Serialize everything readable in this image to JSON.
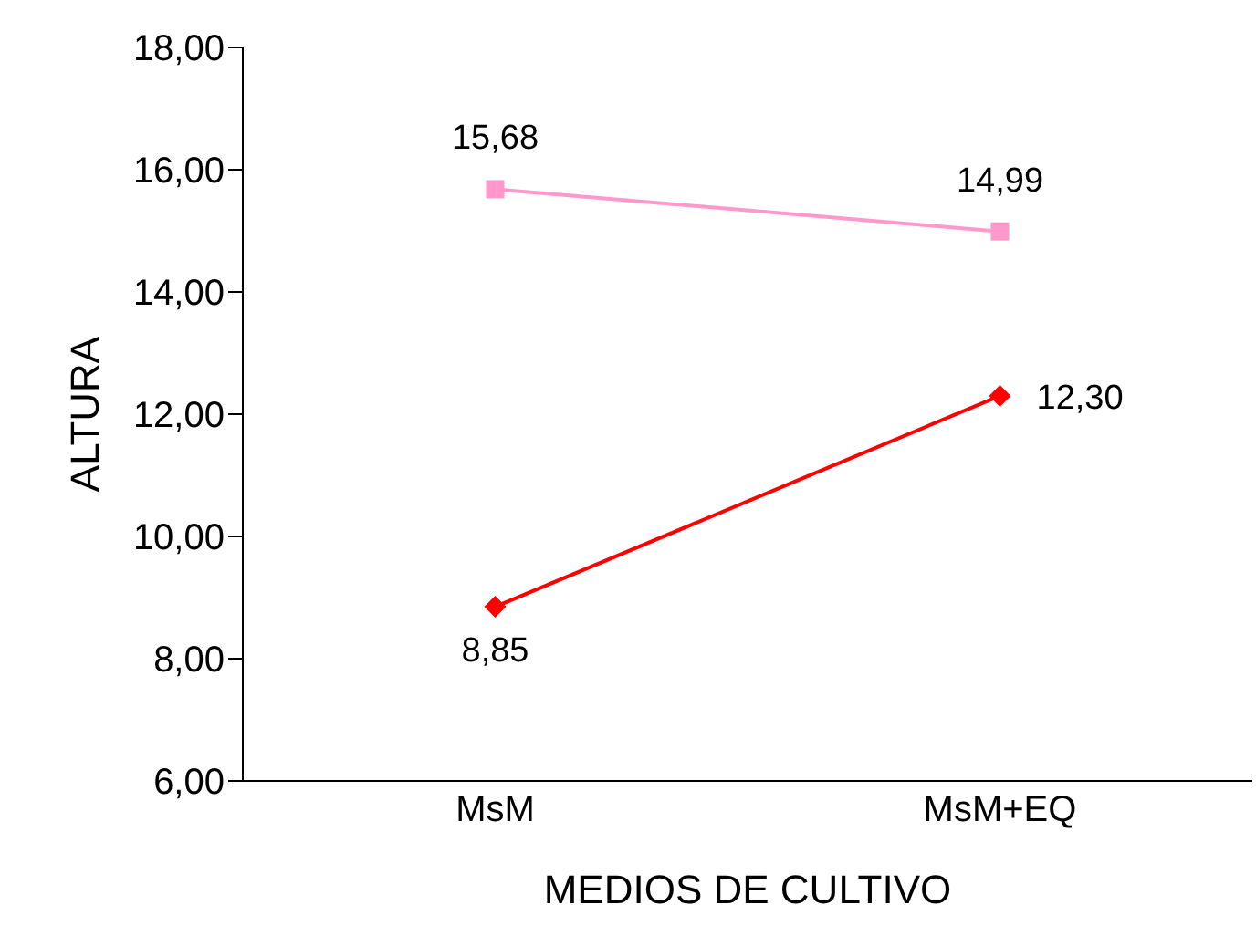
{
  "chart_data": {
    "type": "line",
    "xlabel": "MEDIOS DE CULTIVO",
    "ylabel": "ALTURA",
    "categories": [
      "MsM",
      "MsM+EQ"
    ],
    "series": [
      {
        "color": "#ff99cc",
        "values": [
          15.68,
          14.99
        ],
        "value_labels": [
          "15,68",
          "14,99"
        ],
        "marker": "square"
      },
      {
        "color": "#ff0000",
        "values": [
          8.85,
          12.3
        ],
        "value_labels": [
          "8,85",
          "12,30"
        ],
        "marker": "diamond"
      }
    ],
    "ylim": [
      6,
      18
    ],
    "yticks": [
      {
        "value": 6,
        "label": "6,00"
      },
      {
        "value": 8,
        "label": "8,00"
      },
      {
        "value": 10,
        "label": "10,00"
      },
      {
        "value": 12,
        "label": "12,00"
      },
      {
        "value": 14,
        "label": "14,00"
      },
      {
        "value": 16,
        "label": "16,00"
      },
      {
        "value": 18,
        "label": "18,00"
      }
    ],
    "grid": false
  }
}
